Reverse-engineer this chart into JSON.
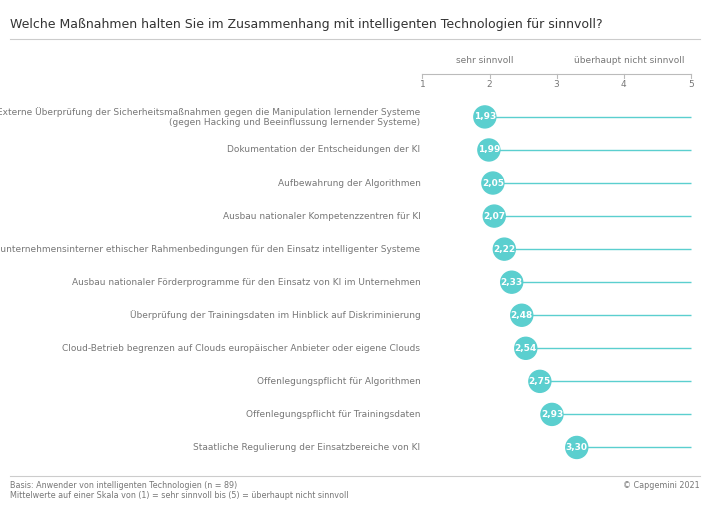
{
  "title": "Welche Maßnahmen halten Sie im Zusammenhang mit intelligenten Technologien für sinnvoll?",
  "categories": [
    "Externe Überprüfung der Sicherheitsmaßnahmen gegen die Manipulation lernender Systeme\n(gegen Hacking und Beeinflussung lernender Systeme)",
    "Dokumentation der Entscheidungen der KI",
    "Aufbewahrung der Algorithmen",
    "Ausbau nationaler Kompetenzzentren für KI",
    "Erarbeitung unternehmensinterner ethischer Rahmenbedingungen für den Einsatz intelligenter Systeme",
    "Ausbau nationaler Förderprogramme für den Einsatz von KI im Unternehmen",
    "Überprüfung der Trainingsdaten im Hinblick auf Diskriminierung",
    "Cloud-Betrieb begrenzen auf Clouds europäischer Anbieter oder eigene Clouds",
    "Offenlegungspflicht für Algorithmen",
    "Offenlegungspflicht für Trainingsdaten",
    "Staatliche Regulierung der Einsatzbereiche von KI"
  ],
  "values": [
    1.93,
    1.99,
    2.05,
    2.07,
    2.22,
    2.33,
    2.48,
    2.54,
    2.75,
    2.93,
    3.3
  ],
  "circle_color": "#5bcfcf",
  "line_color": "#5bcfcf",
  "scale_label_left": "sehr sinnvoll",
  "scale_label_right": "überhaupt nicht sinnvoll",
  "footer_left_1": "Basis: Anwender von intelligenten Technologien (n = 89)",
  "footer_left_2": "Mittelwerte auf einer Skala von (1) = sehr sinnvoll bis (5) = überhaupt nicht sinnvoll",
  "footer_right": "© Capgemini 2021",
  "bg_color": "#ffffff",
  "text_color": "#777777",
  "title_color": "#333333",
  "circle_text_color": "#ffffff",
  "font_size_labels": 6.5,
  "font_size_values": 6.5,
  "font_size_title": 9.0,
  "font_size_scale": 6.5,
  "font_size_footer": 5.8
}
